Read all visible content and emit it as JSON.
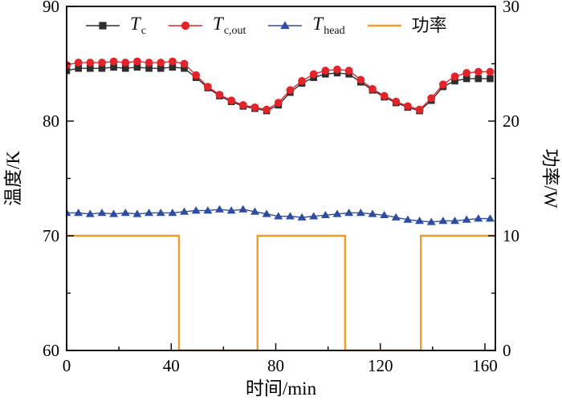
{
  "figure_title": "",
  "chart_data": {
    "type": "line",
    "title": "",
    "xlabel": "时间/min",
    "ylabel_left": "温度/K",
    "ylabel_right": "功率/W",
    "xlim": [
      0,
      164
    ],
    "ylim_left": [
      60,
      90
    ],
    "ylim_right": [
      0,
      30
    ],
    "x_ticks_major": [
      0,
      40,
      80,
      120,
      160
    ],
    "x_ticks_minor": [
      20,
      60,
      100,
      140
    ],
    "y_ticks_left_major": [
      60,
      70,
      80,
      90
    ],
    "y_ticks_left_minor": [
      65,
      75,
      85
    ],
    "y_ticks_right_major": [
      0,
      10,
      20,
      30
    ],
    "y_ticks_right_minor": [
      5,
      15,
      25
    ],
    "grid": false,
    "legend_position": "top-inside",
    "axis_color": "#000000",
    "background": "#ffffff",
    "legend": [
      {
        "main": "T",
        "sub": "c"
      },
      {
        "main": "T",
        "sub": "c,out"
      },
      {
        "main": "T",
        "sub": "head"
      },
      {
        "main": "功率",
        "sub": ""
      }
    ],
    "series": [
      {
        "name": "T_c",
        "axis": "left",
        "color": "#2e2e2e",
        "marker": "square",
        "x": [
          0,
          4.5,
          9,
          13.5,
          18,
          22.5,
          27,
          31.5,
          36,
          40.5,
          45,
          49.5,
          54,
          58.5,
          63,
          67.5,
          72,
          76.5,
          81,
          85.5,
          90,
          94.5,
          99,
          103.5,
          108,
          112.5,
          117,
          121.5,
          126,
          130.5,
          135,
          139.5,
          144,
          148.5,
          153,
          157.5,
          162
        ],
        "y": [
          84.4,
          84.6,
          84.6,
          84.6,
          84.7,
          84.6,
          84.7,
          84.6,
          84.6,
          84.7,
          84.6,
          83.8,
          82.9,
          82.2,
          81.7,
          81.3,
          81.1,
          80.9,
          81.4,
          82.5,
          83.3,
          83.8,
          84.1,
          84.2,
          84.1,
          83.4,
          82.7,
          82.1,
          81.6,
          81.2,
          80.9,
          81.8,
          83.0,
          83.5,
          83.7,
          83.7,
          83.7
        ]
      },
      {
        "name": "T_c,out",
        "axis": "left",
        "color": "#e4242b",
        "marker": "circle",
        "x": [
          0,
          4.5,
          9,
          13.5,
          18,
          22.5,
          27,
          31.5,
          36,
          40.5,
          45,
          49.5,
          54,
          58.5,
          63,
          67.5,
          72,
          76.5,
          81,
          85.5,
          90,
          94.5,
          99,
          103.5,
          108,
          112.5,
          117,
          121.5,
          126,
          130.5,
          135,
          139.5,
          144,
          148.5,
          153,
          157.5,
          162
        ],
        "y": [
          84.9,
          85.1,
          85.1,
          85.1,
          85.2,
          85.1,
          85.2,
          85.1,
          85.1,
          85.2,
          85.0,
          84.0,
          83.0,
          82.3,
          81.8,
          81.4,
          81.2,
          81.0,
          81.6,
          82.7,
          83.5,
          84.1,
          84.4,
          84.5,
          84.4,
          83.6,
          82.8,
          82.2,
          81.7,
          81.3,
          81.0,
          82.0,
          83.2,
          83.9,
          84.2,
          84.3,
          84.3
        ]
      },
      {
        "name": "T_head",
        "axis": "left",
        "color": "#2e4d9e",
        "marker": "triangle",
        "x": [
          0,
          4.5,
          9,
          13.5,
          18,
          22.5,
          27,
          31.5,
          36,
          40.5,
          45,
          49.5,
          54,
          58.5,
          63,
          67.5,
          72,
          76.5,
          81,
          85.5,
          90,
          94.5,
          99,
          103.5,
          108,
          112.5,
          117,
          121.5,
          126,
          130.5,
          135,
          139.5,
          144,
          148.5,
          153,
          157.5,
          162
        ],
        "y": [
          72.0,
          72.0,
          71.9,
          72.0,
          71.9,
          72.0,
          71.9,
          72.0,
          72.0,
          72.0,
          72.1,
          72.2,
          72.2,
          72.3,
          72.2,
          72.3,
          72.1,
          71.9,
          71.7,
          71.7,
          71.6,
          71.7,
          71.8,
          71.9,
          72.0,
          72.0,
          71.9,
          71.8,
          71.6,
          71.4,
          71.3,
          71.2,
          71.3,
          71.3,
          71.4,
          71.5,
          71.5
        ]
      },
      {
        "name": "功率",
        "axis": "right",
        "color": "#ef9b2d",
        "marker": "none",
        "x": [
          0,
          43,
          43,
          73,
          73,
          106.5,
          106.5,
          135.5,
          135.5,
          164
        ],
        "y": [
          10,
          10,
          0,
          0,
          10,
          10,
          0,
          0,
          10,
          10
        ]
      }
    ]
  }
}
